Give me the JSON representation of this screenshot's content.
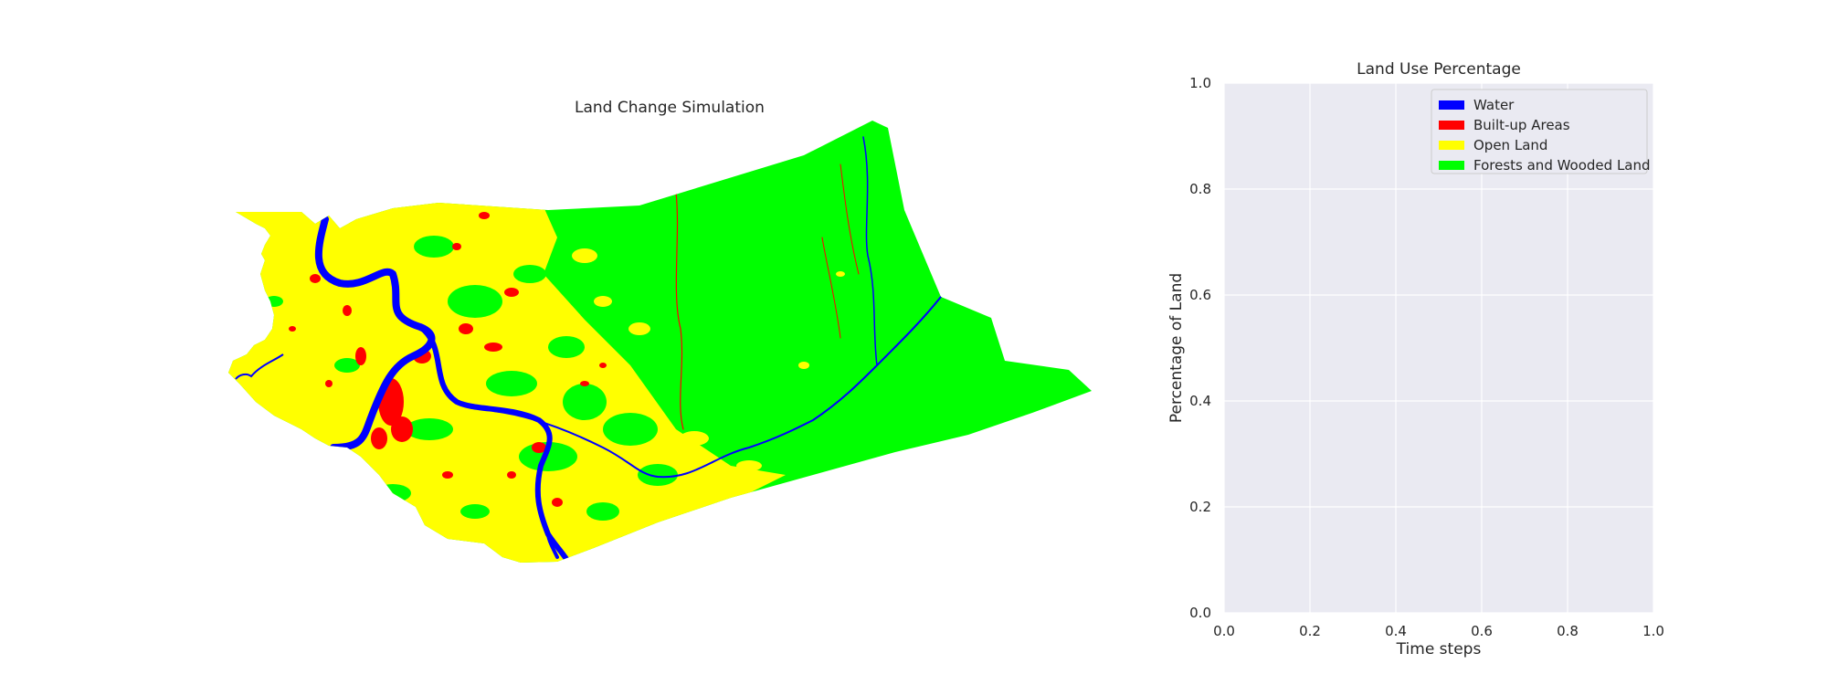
{
  "map_panel": {
    "title": "Land Change Simulation",
    "legend_colors": {
      "water": "#0000ff",
      "built_up": "#ff0000",
      "open_land": "#ffff00",
      "forest": "#00ff00"
    }
  },
  "chart_data": {
    "type": "line",
    "title": "Land Use Percentage",
    "xlabel": "Time steps",
    "ylabel": "Percentage of Land",
    "xlim": [
      0.0,
      1.0
    ],
    "ylim": [
      0.0,
      1.0
    ],
    "xticks": [
      "0.0",
      "0.2",
      "0.4",
      "0.6",
      "0.8",
      "1.0"
    ],
    "yticks": [
      "0.0",
      "0.2",
      "0.4",
      "0.6",
      "0.8",
      "1.0"
    ],
    "grid": true,
    "legend_position": "upper right",
    "background": "#eaeaf2",
    "series": [
      {
        "name": "Water",
        "color": "#0000ff",
        "values": []
      },
      {
        "name": "Built-up Areas",
        "color": "#ff0000",
        "values": []
      },
      {
        "name": "Open Land",
        "color": "#ffff00",
        "values": []
      },
      {
        "name": "Forests and Wooded Land",
        "color": "#00ff00",
        "values": []
      }
    ]
  }
}
